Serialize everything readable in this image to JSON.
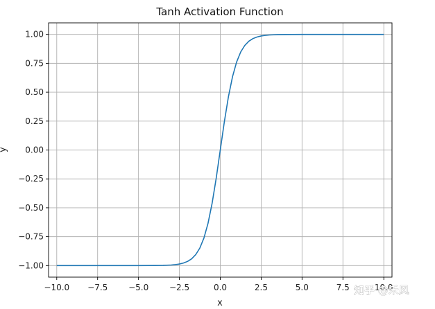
{
  "chart_data": {
    "type": "line",
    "title": "Tanh Activation Function",
    "xlabel": "x",
    "ylabel": "y",
    "xlim": [
      -10.5,
      10.5
    ],
    "ylim": [
      -1.1,
      1.1
    ],
    "xticks": [
      -10.0,
      -7.5,
      -5.0,
      -2.5,
      0.0,
      2.5,
      5.0,
      7.5,
      10.0
    ],
    "xtick_labels": [
      "−10.0",
      "−7.5",
      "−5.0",
      "−2.5",
      "0.0",
      "2.5",
      "5.0",
      "7.5",
      "10.0"
    ],
    "yticks": [
      -1.0,
      -0.75,
      -0.5,
      -0.25,
      0.0,
      0.25,
      0.5,
      0.75,
      1.0
    ],
    "ytick_labels": [
      "−1.00",
      "−0.75",
      "−0.50",
      "−0.25",
      "0.00",
      "0.25",
      "0.50",
      "0.75",
      "1.00"
    ],
    "grid": true,
    "line_color": "#1f77b4",
    "series": [
      {
        "x": [
          -10,
          -9,
          -8,
          -7,
          -6,
          -5,
          -4,
          -3.5,
          -3,
          -2.75,
          -2.5,
          -2.25,
          -2,
          -1.75,
          -1.5,
          -1.25,
          -1,
          -0.75,
          -0.5,
          -0.25,
          0,
          0.25,
          0.5,
          0.75,
          1,
          1.25,
          1.5,
          1.75,
          2,
          2.25,
          2.5,
          2.75,
          3,
          3.5,
          4,
          5,
          6,
          7,
          8,
          9,
          10
        ],
        "y": [
          -1.0,
          -1.0,
          -1.0,
          -1.0,
          -1.0,
          -0.9999,
          -0.9993,
          -0.9982,
          -0.9951,
          -0.9918,
          -0.9866,
          -0.978,
          -0.964,
          -0.9414,
          -0.9051,
          -0.8483,
          -0.7616,
          -0.6351,
          -0.4621,
          -0.2449,
          0.0,
          0.2449,
          0.4621,
          0.6351,
          0.7616,
          0.8483,
          0.9051,
          0.9414,
          0.964,
          0.978,
          0.9866,
          0.9918,
          0.9951,
          0.9982,
          0.9993,
          0.9999,
          1.0,
          1.0,
          1.0,
          1.0,
          1.0
        ]
      }
    ]
  },
  "watermark": "知乎 @禾风"
}
